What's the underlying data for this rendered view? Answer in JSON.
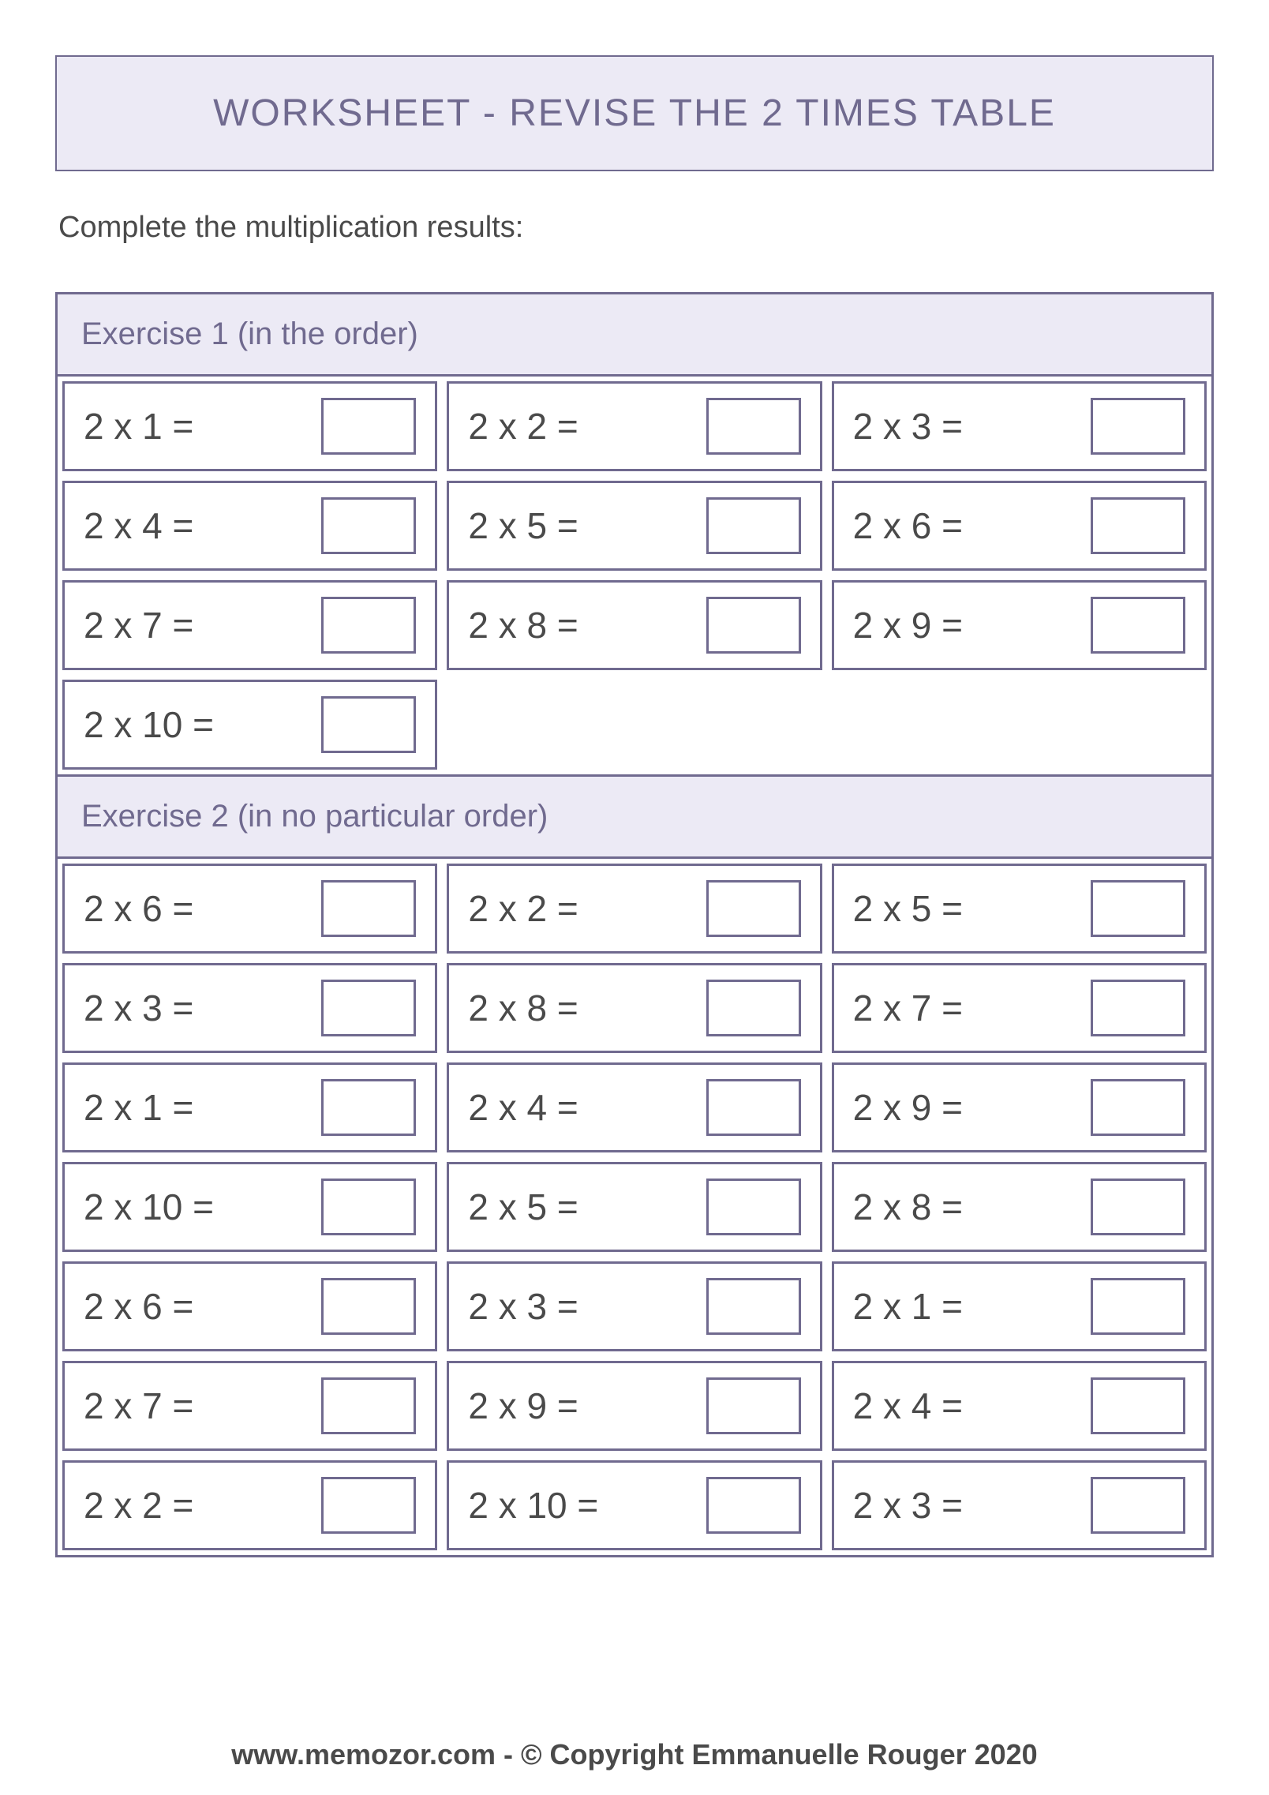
{
  "colors": {
    "border": "#706a8f",
    "header_bg": "#eceaf5",
    "title_text": "#706a8f",
    "body_text": "#4a4a4a",
    "background": "#ffffff"
  },
  "title": "WORKSHEET - REVISE THE 2 TIMES TABLE",
  "instructions": "Complete the multiplication results:",
  "exercise1": {
    "label": "Exercise 1 (in the order)",
    "problems": [
      [
        "2 x 1 =",
        "2 x 2 =",
        "2 x 3 ="
      ],
      [
        "2 x 4 =",
        "2 x 5 =",
        "2 x 6 ="
      ],
      [
        "2 x 7 =",
        "2 x 8 =",
        "2 x 9 ="
      ],
      [
        "2 x 10 =",
        "",
        ""
      ]
    ]
  },
  "exercise2": {
    "label": "Exercise 2 (in no particular order)",
    "problems": [
      [
        "2 x 6 =",
        "2 x 2 =",
        "2 x 5 ="
      ],
      [
        "2 x 3 =",
        "2 x 8 =",
        "2 x 7 ="
      ],
      [
        "2 x 1 =",
        "2 x 4 =",
        "2 x 9 ="
      ],
      [
        "2 x 10 =",
        "2 x 5 =",
        "2 x 8 ="
      ],
      [
        "2 x 6 =",
        "2 x 3 =",
        "2 x 1 ="
      ],
      [
        "2 x 7 =",
        "2 x 9 =",
        "2 x 4 ="
      ],
      [
        "2 x 2 =",
        "2 x 10 =",
        "2 x 3 ="
      ]
    ]
  },
  "footer": "www.memozor.com - © Copyright Emmanuelle Rouger 2020"
}
